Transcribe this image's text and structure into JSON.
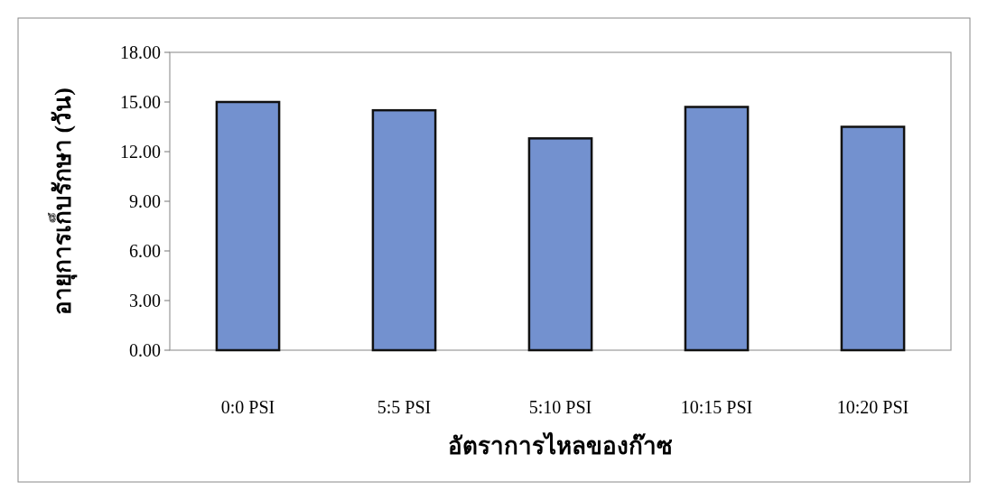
{
  "chart_data": {
    "type": "bar",
    "xlabel": "อัตราการไหลของก๊าซ",
    "ylabel": "อายุการเก็บรักษา (วัน)",
    "categories": [
      "0:0 PSI",
      "5:5 PSI",
      "5:10 PSI",
      "10:15 PSI",
      "10:20 PSI"
    ],
    "values": [
      15.0,
      14.5,
      12.8,
      14.7,
      13.5
    ],
    "color": "#7391cf",
    "ylim": [
      0,
      18
    ],
    "yticks": [
      {
        "value": 0,
        "label": "0.00"
      },
      {
        "value": 3,
        "label": "3.00"
      },
      {
        "value": 6,
        "label": "6.00"
      },
      {
        "value": 9,
        "label": "9.00"
      },
      {
        "value": 12,
        "label": "12.00"
      },
      {
        "value": 15,
        "label": "15.00"
      },
      {
        "value": 18,
        "label": "18.00"
      }
    ]
  }
}
